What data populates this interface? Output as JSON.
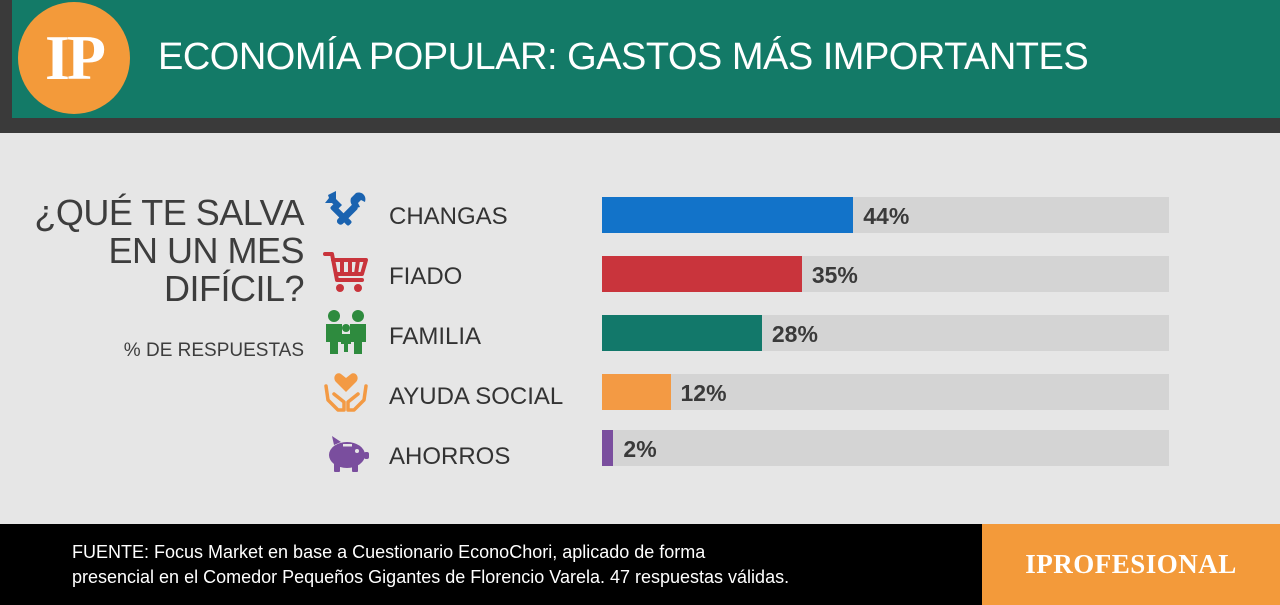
{
  "header": {
    "logo_text": "IP",
    "title": "ECONOMÍA POPULAR: GASTOS MÁS IMPORTANTES"
  },
  "question": {
    "lines": [
      "¿QUÉ TE SALVA",
      "EN UN MES",
      "DIFÍCIL?"
    ],
    "subtitle": "% DE RESPUESTAS"
  },
  "chart_data": {
    "type": "bar",
    "orientation": "horizontal",
    "categories": [
      "CHANGAS",
      "FIADO",
      "FAMILIA",
      "AYUDA SOCIAL",
      "AHORROS"
    ],
    "values": [
      44,
      35,
      28,
      12,
      2
    ],
    "value_labels": [
      "44%",
      "35%",
      "28%",
      "12%",
      "2%"
    ],
    "colors": [
      "#1273c9",
      "#c9343c",
      "#12786a",
      "#f39a44",
      "#7a4e9e"
    ],
    "icons": [
      "tools-icon",
      "shopping-cart-icon",
      "family-icon",
      "helping-hands-heart-icon",
      "piggy-bank-icon"
    ],
    "xlim": [
      0,
      100
    ],
    "grid": false,
    "legend": "none"
  },
  "footer": {
    "source_lines": [
      "FUENTE:  Focus Market en base a Cuestionario EconoChori, aplicado de forma",
      "presencial en el Comedor Pequeños Gigantes de Florencio Varela. 47 respuestas válidas."
    ],
    "brand": "IPROFESIONAL"
  }
}
